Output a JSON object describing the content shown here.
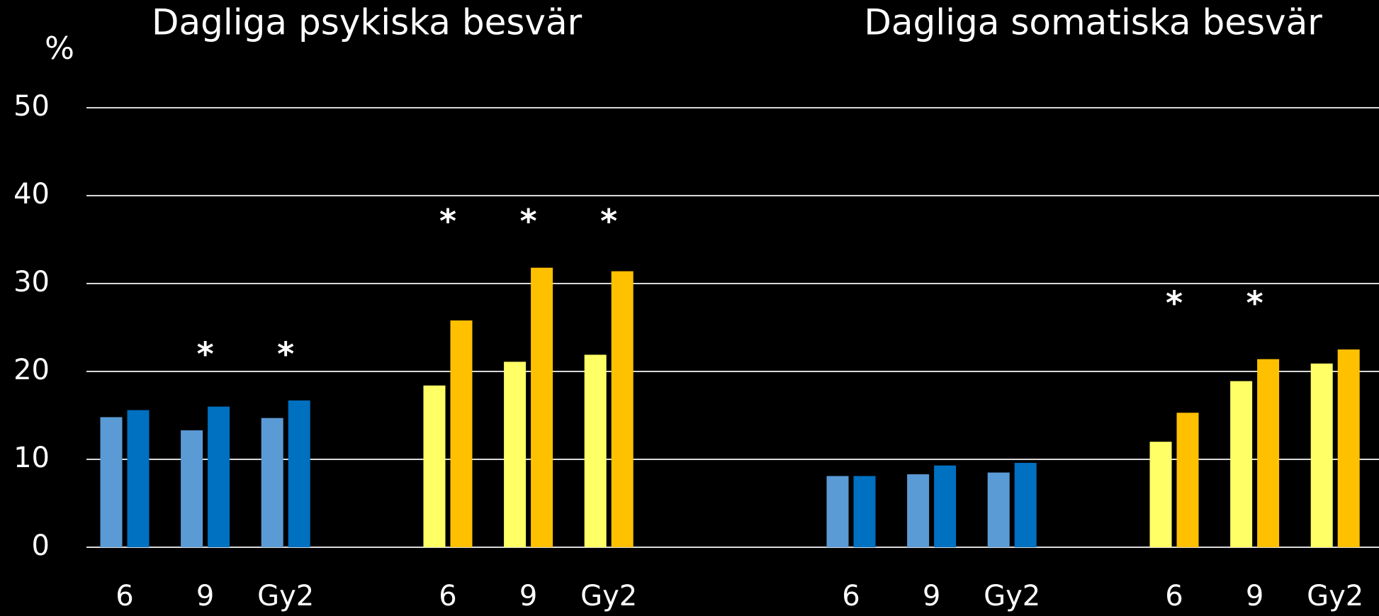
{
  "chart_data": {
    "type": "bar",
    "ylabel": "%",
    "ylim": [
      0,
      50
    ],
    "yticks": [
      0,
      10,
      20,
      30,
      40,
      50
    ],
    "grid": true,
    "panels": [
      {
        "title": "Dagliga psykiska besvär",
        "groups": [
          {
            "categories": [
              "6",
              "9",
              "Gy2"
            ],
            "series": [
              {
                "color": "#5b9bd5",
                "values": [
                  14.8,
                  13.3,
                  14.7
                ]
              },
              {
                "color": "#0070c0",
                "values": [
                  15.6,
                  16.0,
                  16.7
                ]
              }
            ],
            "markers": [
              null,
              "*",
              "*"
            ]
          },
          {
            "categories": [
              "6",
              "9",
              "Gy2"
            ],
            "series": [
              {
                "color": "#ffff66",
                "values": [
                  18.4,
                  21.1,
                  21.9
                ]
              },
              {
                "color": "#ffc000",
                "values": [
                  25.8,
                  31.8,
                  31.4
                ]
              }
            ],
            "markers": [
              "*",
              "*",
              "*"
            ]
          }
        ]
      },
      {
        "title": "Dagliga somatiska besvär",
        "groups": [
          {
            "categories": [
              "6",
              "9",
              "Gy2"
            ],
            "series": [
              {
                "color": "#5b9bd5",
                "values": [
                  8.1,
                  8.3,
                  8.5
                ]
              },
              {
                "color": "#0070c0",
                "values": [
                  8.1,
                  9.3,
                  9.6
                ]
              }
            ],
            "markers": [
              null,
              null,
              null
            ]
          },
          {
            "categories": [
              "6",
              "9",
              "Gy2"
            ],
            "series": [
              {
                "color": "#ffff66",
                "values": [
                  12.0,
                  18.9,
                  20.9
                ]
              },
              {
                "color": "#ffc000",
                "values": [
                  15.3,
                  21.4,
                  22.5
                ]
              }
            ],
            "markers": [
              "*",
              "*",
              null
            ]
          }
        ]
      }
    ]
  }
}
